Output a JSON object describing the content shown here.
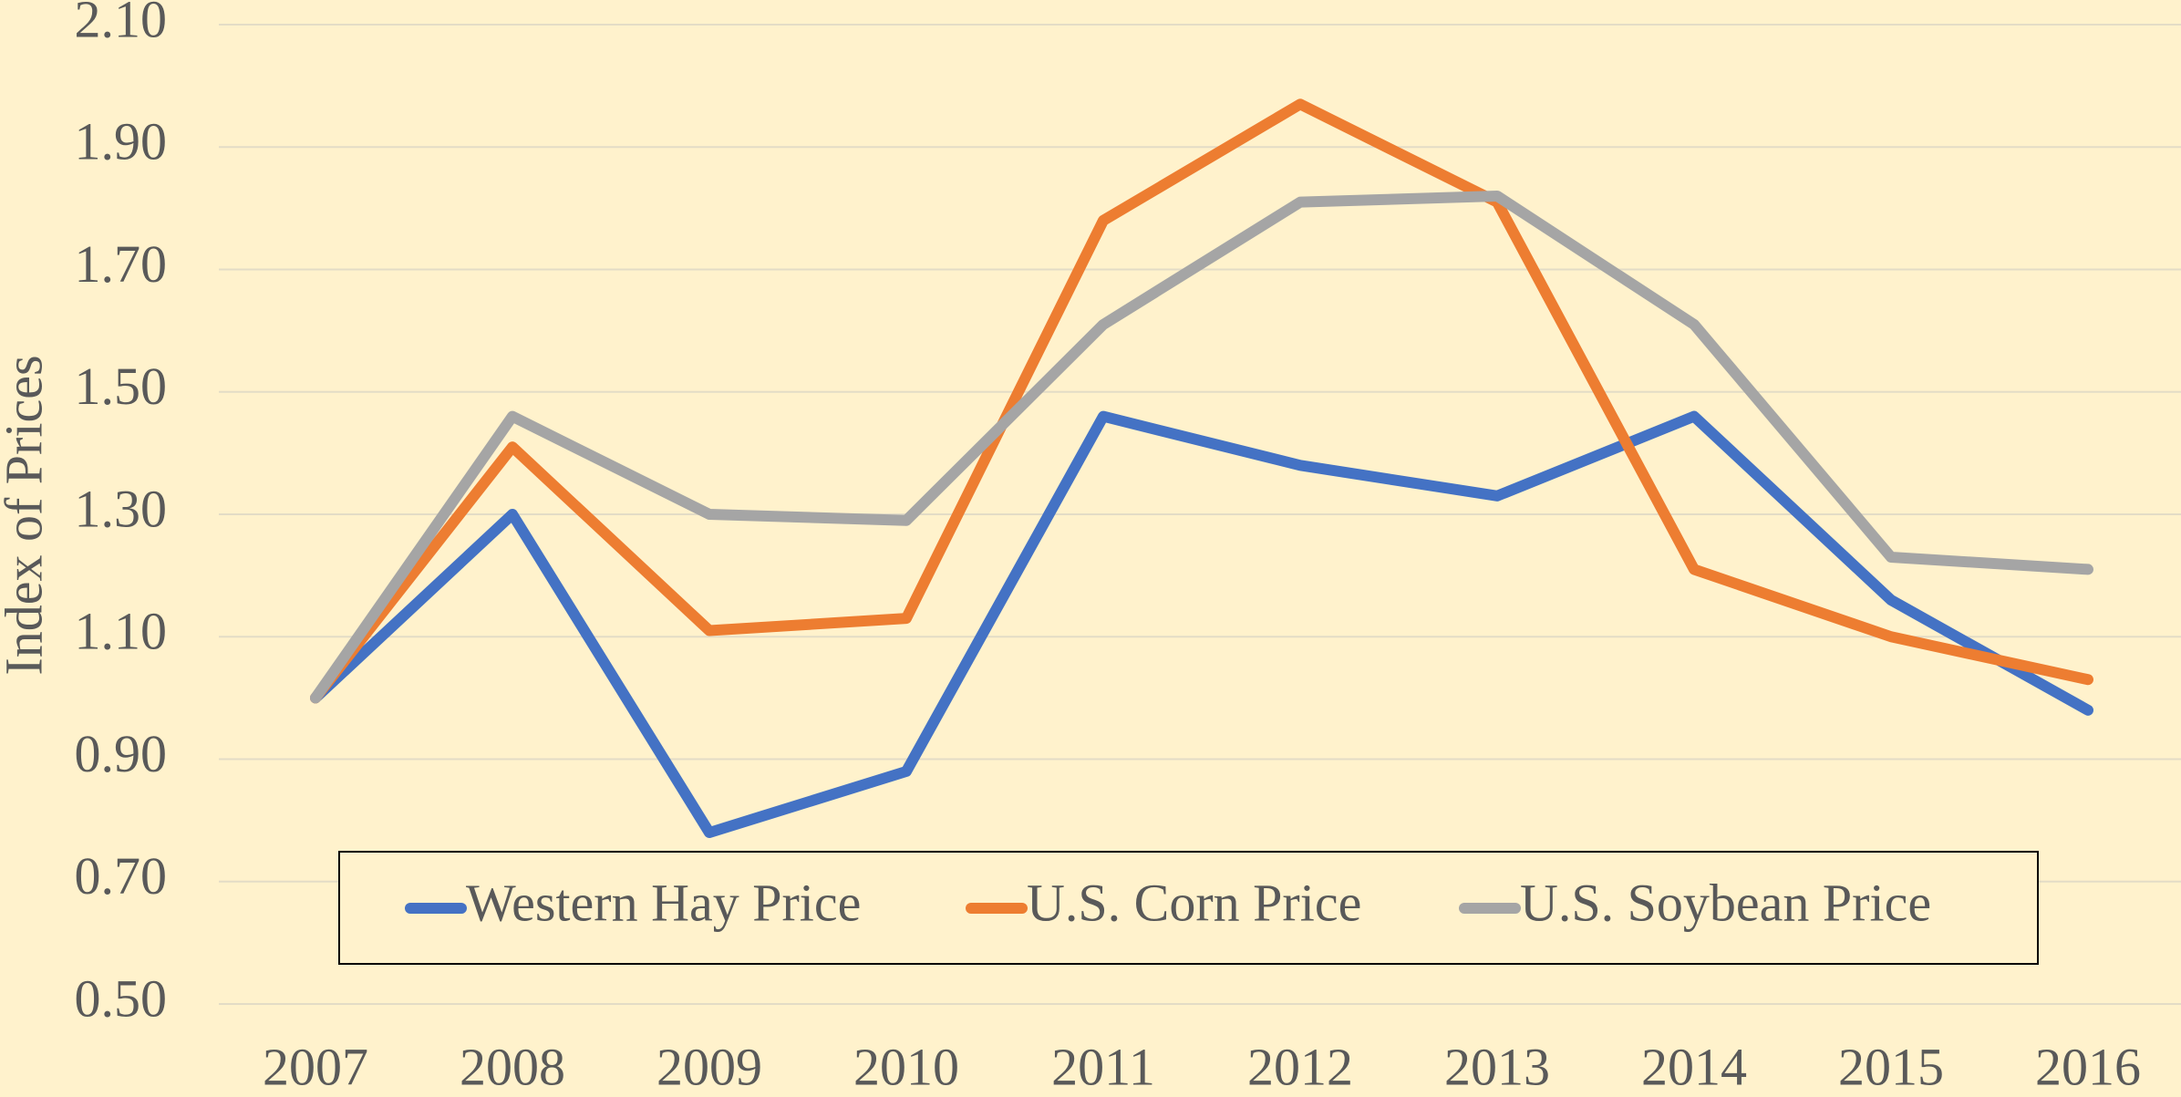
{
  "chart_data": {
    "type": "line",
    "ylabel": "Index of Prices",
    "categories": [
      "2007",
      "2008",
      "2009",
      "2010",
      "2011",
      "2012",
      "2013",
      "2014",
      "2015",
      "2016"
    ],
    "series": [
      {
        "name": "Western Hay Price",
        "color": "#4472c4",
        "values": [
          1.0,
          1.3,
          0.78,
          0.88,
          1.46,
          1.38,
          1.33,
          1.46,
          1.16,
          0.98
        ]
      },
      {
        "name": "U.S. Corn Price",
        "color": "#ed7d31",
        "values": [
          1.0,
          1.41,
          1.11,
          1.13,
          1.78,
          1.97,
          1.81,
          1.21,
          1.1,
          1.03
        ]
      },
      {
        "name": "U.S. Soybean Price",
        "color": "#a5a5a5",
        "values": [
          1.0,
          1.46,
          1.3,
          1.29,
          1.61,
          1.81,
          1.82,
          1.61,
          1.23,
          1.21
        ]
      }
    ],
    "ylim": [
      0.5,
      2.1
    ],
    "yticks": [
      {
        "value": 0.5,
        "label": "0.50"
      },
      {
        "value": 0.7,
        "label": "0.70"
      },
      {
        "value": 0.9,
        "label": "0.90"
      },
      {
        "value": 1.1,
        "label": "1.10"
      },
      {
        "value": 1.3,
        "label": "1.30"
      },
      {
        "value": 1.5,
        "label": "1.50"
      },
      {
        "value": 1.7,
        "label": "1.70"
      },
      {
        "value": 1.9,
        "label": "1.90"
      },
      {
        "value": 2.1,
        "label": "2.10"
      }
    ],
    "grid": true
  }
}
